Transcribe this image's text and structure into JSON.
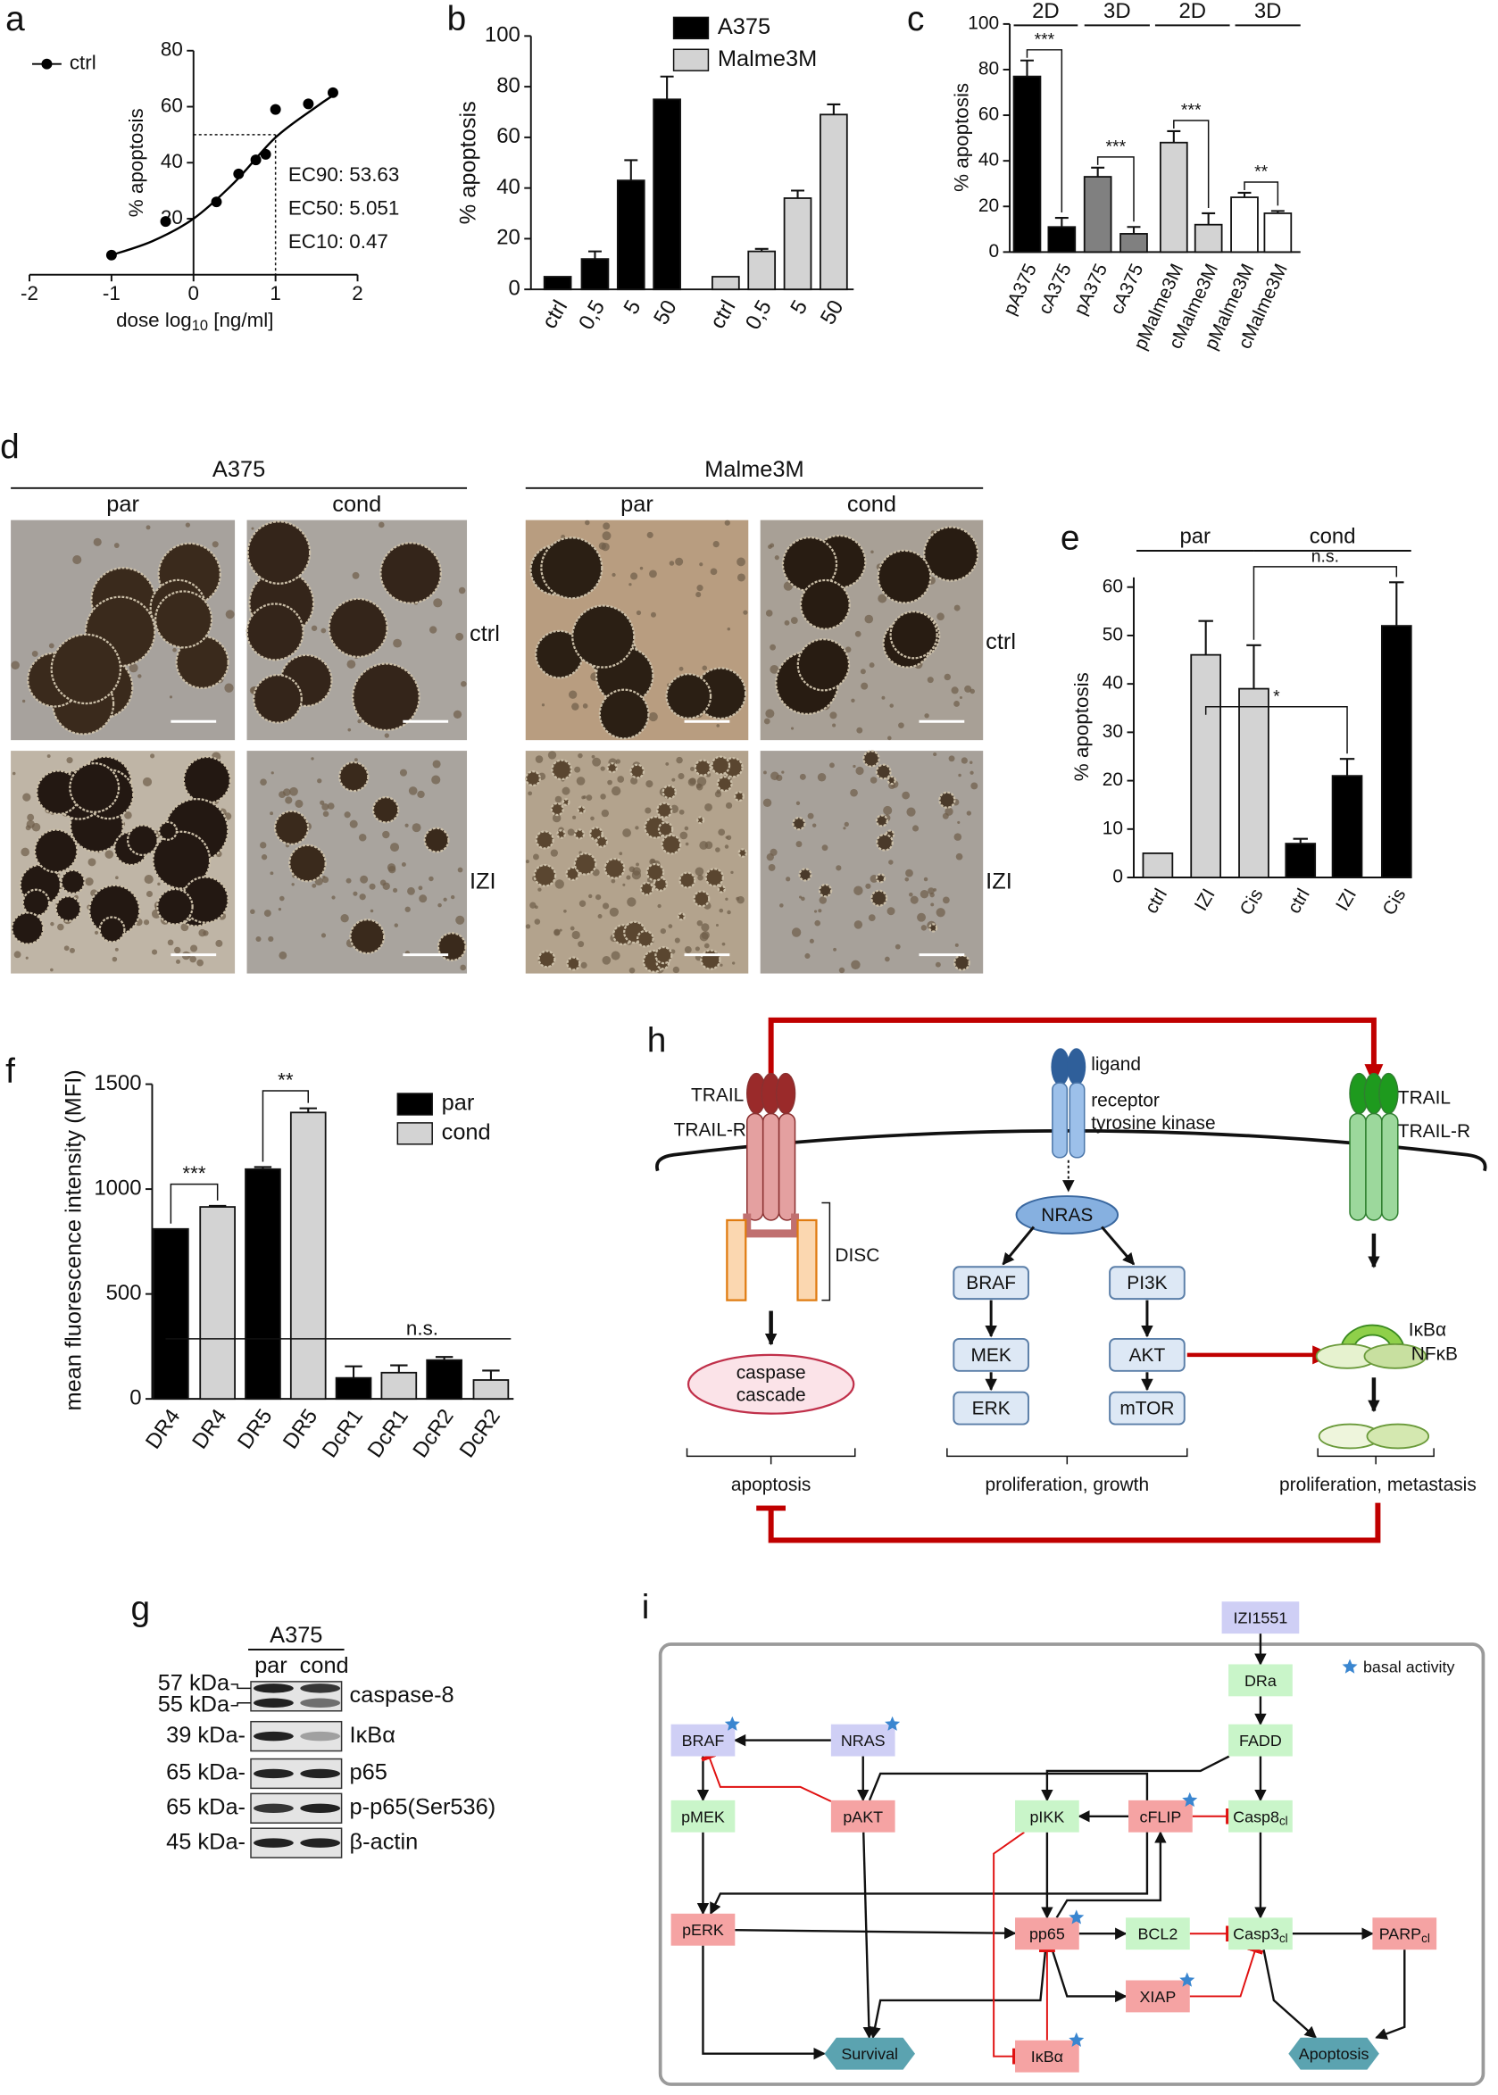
{
  "chart_data": [
    {
      "label": "a",
      "type": "line",
      "xlabel_parts": [
        "dose log",
        "10",
        " [ng/ml]"
      ],
      "ylabel": "% apoptosis",
      "xlim": [
        -2,
        2
      ],
      "xticks": [
        -2,
        -1,
        0,
        1,
        2
      ],
      "ylim": [
        0,
        80
      ],
      "yticks": [
        20,
        40,
        60,
        80
      ],
      "series": [
        {
          "name": "ctrl",
          "color": "#000000",
          "x": [
            -1.0,
            -0.34,
            0.28,
            0.55,
            0.76,
            0.88,
            1.0,
            1.4,
            1.7
          ],
          "values": [
            7,
            19,
            26,
            36,
            41,
            43,
            59,
            61,
            65
          ],
          "fit_x": [
            -1,
            -0.5,
            0,
            0.5,
            1,
            1.5,
            1.7
          ],
          "fit_values": [
            7,
            12,
            20,
            33,
            49,
            60,
            64
          ]
        }
      ],
      "guide": {
        "x": 1,
        "y": 50
      },
      "annotations": [
        "EC90: 53.63",
        "EC50: 5.051",
        "EC10: 0.47"
      ]
    },
    {
      "label": "b",
      "type": "bar",
      "ylabel": "% apoptosis",
      "ylim": [
        0,
        100
      ],
      "yticks": [
        0,
        20,
        40,
        60,
        80,
        100
      ],
      "categories": [
        "ctrl",
        "0,5",
        "5",
        "50",
        "ctrl",
        "0,5",
        "5",
        "50"
      ],
      "series": [
        {
          "name": "A375",
          "color": "#000000",
          "values": [
            5,
            12,
            43,
            75,
            null,
            null,
            null,
            null
          ],
          "errors": [
            null,
            3,
            8,
            9,
            null,
            null,
            null,
            null
          ]
        },
        {
          "name": "Malme3M",
          "color": "#d3d3d3",
          "values": [
            null,
            null,
            null,
            null,
            5,
            15,
            36,
            69
          ],
          "errors": [
            null,
            null,
            null,
            null,
            null,
            1,
            3,
            4
          ]
        }
      ]
    },
    {
      "label": "c",
      "type": "bar",
      "ylabel": "% apoptosis",
      "ylim": [
        0,
        100
      ],
      "yticks": [
        0,
        20,
        40,
        60,
        80,
        100
      ],
      "categories": [
        "pA375",
        "cA375",
        "pA375",
        "cA375",
        "pMalme3M",
        "cMalme3M",
        "pMalme3M",
        "cMalme3M"
      ],
      "values": [
        77,
        11,
        33,
        8,
        48,
        12,
        24,
        17
      ],
      "errors": [
        7,
        4,
        4,
        3,
        5,
        5,
        2,
        1
      ],
      "colors": [
        "#000000",
        "#000000",
        "#808080",
        "#808080",
        "#d3d3d3",
        "#d3d3d3",
        "#ffffff",
        "#ffffff"
      ],
      "group_labels": [
        "2D",
        "3D",
        "2D",
        "3D"
      ],
      "annotations": [
        "***",
        "***",
        "***",
        "**"
      ]
    },
    {
      "label": "e",
      "type": "bar",
      "ylabel": "% apoptosis",
      "ylim": [
        0,
        62
      ],
      "yticks": [
        0,
        10,
        20,
        30,
        40,
        50,
        60
      ],
      "categories": [
        "ctrl",
        "IZI",
        "Cis",
        "ctrl",
        "IZI",
        "Cis"
      ],
      "values": [
        5,
        46,
        39,
        7,
        21,
        52
      ],
      "errors": [
        null,
        7,
        9,
        1,
        3.5,
        9
      ],
      "colors": [
        "#d3d3d3",
        "#d3d3d3",
        "#d3d3d3",
        "#000000",
        "#000000",
        "#000000"
      ],
      "group_labels": [
        "par",
        "cond"
      ],
      "annotations": [
        "*",
        "n.s."
      ]
    },
    {
      "label": "f",
      "type": "bar",
      "ylabel": "mean fluorescence intensity (MFI)",
      "ylim": [
        0,
        1500
      ],
      "yticks": [
        0,
        500,
        1000,
        1500
      ],
      "categories": [
        "DR4",
        "DR4",
        "DR5",
        "DR5",
        "DcR1",
        "DcR1",
        "DcR2",
        "DcR2"
      ],
      "series": [
        {
          "name": "par",
          "color": "#000000",
          "values": [
            810,
            null,
            1095,
            null,
            100,
            null,
            185,
            null
          ],
          "errors": [
            null,
            null,
            10,
            null,
            55,
            null,
            15,
            null
          ]
        },
        {
          "name": "cond",
          "color": "#d3d3d3",
          "values": [
            null,
            915,
            null,
            1365,
            null,
            125,
            null,
            90
          ],
          "errors": [
            null,
            5,
            null,
            20,
            null,
            35,
            null,
            45
          ]
        }
      ],
      "annotations": [
        "***",
        "**",
        "n.s."
      ]
    }
  ],
  "panel_d": {
    "label": "d",
    "groups": [
      {
        "title": "A375",
        "columns": [
          "par",
          "cond"
        ],
        "rows": [
          "ctrl",
          "IZI"
        ]
      },
      {
        "title": "Malme3M",
        "columns": [
          "par",
          "cond"
        ],
        "rows": [
          "ctrl",
          "IZI"
        ]
      }
    ]
  },
  "panel_g": {
    "label": "g",
    "cell_line": "A375",
    "lanes": [
      "par",
      "cond"
    ],
    "markers": [
      "57 kDa",
      "55 kDa",
      "39 kDa-",
      "65 kDa-",
      "65 kDa-",
      "45 kDa-"
    ],
    "proteins": [
      "caspase-8",
      "IκBα",
      "p65",
      "p-p65(Ser536)",
      "β-actin"
    ]
  },
  "panel_h": {
    "label": "h",
    "texts": [
      "TRAIL",
      "TRAIL-R",
      "ligand",
      "receptor",
      "tyrosine kinase",
      "DISC",
      "NRAS",
      "BRAF",
      "PI3K",
      "MEK",
      "AKT",
      "ERK",
      "mTOR",
      "caspase",
      "cascade",
      "apoptosis",
      "proliferation, growth",
      "TRAIL",
      "TRAIL-R",
      "IκBα",
      "NFκB",
      "proliferation, metastasis"
    ]
  },
  "panel_i": {
    "label": "i",
    "legend": "basal activity",
    "nodes": [
      {
        "label": "IZI1551"
      },
      {
        "label": "DRa"
      },
      {
        "label": "FADD"
      },
      {
        "label": "BRAF"
      },
      {
        "label": "NRAS"
      },
      {
        "label": "pMEK"
      },
      {
        "label": "pAKT"
      },
      {
        "label": "pIKK"
      },
      {
        "label": "cFLIP"
      },
      {
        "label": "Casp8",
        "sub": "cl"
      },
      {
        "label": "pERK"
      },
      {
        "label": "pp65"
      },
      {
        "label": "BCL2"
      },
      {
        "label": "Casp3",
        "sub": "cl"
      },
      {
        "label": "PARP",
        "sub": "cl"
      },
      {
        "label": "XIAP"
      },
      {
        "label": "Survival"
      },
      {
        "label": "IκBα"
      },
      {
        "label": "Apoptosis"
      }
    ]
  }
}
